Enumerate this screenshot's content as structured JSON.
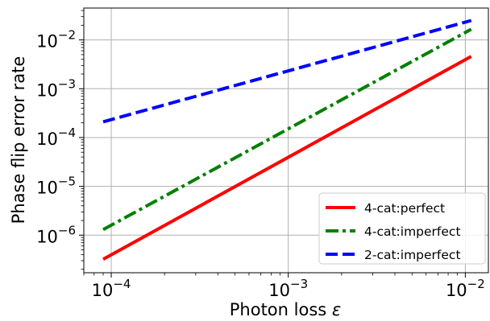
{
  "chart_data": {
    "type": "line",
    "title": "",
    "xlabel": "Photon loss",
    "xlabel_symbol": "ε",
    "ylabel": "Phase flip error rate",
    "xscale": "log",
    "yscale": "log",
    "xlim": [
      7e-05,
      0.0135
    ],
    "ylim": [
      1.7e-07,
      0.045
    ],
    "grid": true,
    "legend_position": "lower-right",
    "x_ticks": [
      {
        "value": 0.0001,
        "base": "10",
        "exp": "−4"
      },
      {
        "value": 0.001,
        "base": "10",
        "exp": "−3"
      },
      {
        "value": 0.01,
        "base": "10",
        "exp": "−2"
      }
    ],
    "y_ticks": [
      {
        "value": 1e-06,
        "base": "10",
        "exp": "−6"
      },
      {
        "value": 1e-05,
        "base": "10",
        "exp": "−5"
      },
      {
        "value": 0.0001,
        "base": "10",
        "exp": "−4"
      },
      {
        "value": 0.001,
        "base": "10",
        "exp": "−3"
      },
      {
        "value": 0.01,
        "base": "10",
        "exp": "−2"
      }
    ],
    "series": [
      {
        "name": "4-cat:perfect",
        "color": "#ff0000",
        "dash": "solid",
        "x": [
          9e-05,
          0.0108
        ],
        "y": [
          3.2e-07,
          0.0046
        ]
      },
      {
        "name": "4-cat:imperfect",
        "color": "#008000",
        "dash": "dashdot",
        "x": [
          9e-05,
          0.0108
        ],
        "y": [
          1.3e-06,
          0.0165
        ]
      },
      {
        "name": "2-cat:imperfect",
        "color": "#0000ff",
        "dash": "dashed",
        "x": [
          9e-05,
          0.0108
        ],
        "y": [
          0.00021,
          0.025
        ]
      }
    ]
  }
}
